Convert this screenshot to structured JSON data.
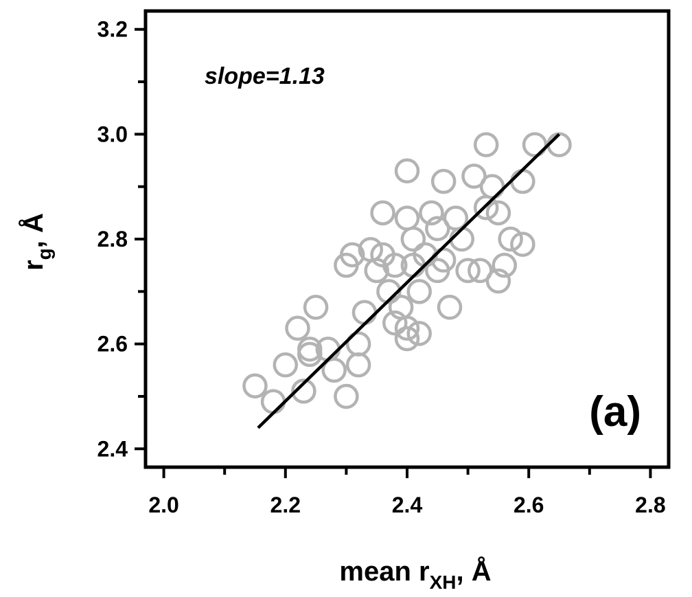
{
  "chart_data": {
    "type": "scatter",
    "title": "",
    "xlabel": {
      "main": "mean r",
      "sub": "XH",
      "unit": ", Å"
    },
    "ylabel": {
      "main": "r",
      "sub": "g",
      "unit": ", Å"
    },
    "xlim": [
      1.97,
      2.83
    ],
    "ylim": [
      2.365,
      3.235
    ],
    "x_ticks": [
      "2.0",
      "2.2",
      "2.4",
      "2.6",
      "2.8"
    ],
    "y_ticks": [
      "2.4",
      "2.6",
      "2.8",
      "3.0",
      "3.2"
    ],
    "annotations": {
      "slope": "slope=1.13",
      "panel": "(a)"
    },
    "marker_color": "#b3b3b3",
    "line_color": "#000000",
    "fit_line": {
      "slope": 1.13,
      "x": [
        2.155,
        2.65
      ],
      "y": [
        2.44,
        3.0
      ]
    },
    "points": [
      {
        "x": 2.15,
        "y": 2.52
      },
      {
        "x": 2.18,
        "y": 2.49
      },
      {
        "x": 2.2,
        "y": 2.56
      },
      {
        "x": 2.22,
        "y": 2.63
      },
      {
        "x": 2.24,
        "y": 2.59
      },
      {
        "x": 2.24,
        "y": 2.58
      },
      {
        "x": 2.23,
        "y": 2.51
      },
      {
        "x": 2.25,
        "y": 2.67
      },
      {
        "x": 2.27,
        "y": 2.59
      },
      {
        "x": 2.28,
        "y": 2.55
      },
      {
        "x": 2.3,
        "y": 2.5
      },
      {
        "x": 2.3,
        "y": 2.75
      },
      {
        "x": 2.31,
        "y": 2.77
      },
      {
        "x": 2.33,
        "y": 2.66
      },
      {
        "x": 2.32,
        "y": 2.6
      },
      {
        "x": 2.32,
        "y": 2.56
      },
      {
        "x": 2.34,
        "y": 2.78
      },
      {
        "x": 2.35,
        "y": 2.74
      },
      {
        "x": 2.36,
        "y": 2.77
      },
      {
        "x": 2.36,
        "y": 2.85
      },
      {
        "x": 2.37,
        "y": 2.7
      },
      {
        "x": 2.38,
        "y": 2.75
      },
      {
        "x": 2.38,
        "y": 2.64
      },
      {
        "x": 2.39,
        "y": 2.67
      },
      {
        "x": 2.4,
        "y": 2.61
      },
      {
        "x": 2.4,
        "y": 2.63
      },
      {
        "x": 2.4,
        "y": 2.84
      },
      {
        "x": 2.4,
        "y": 2.93
      },
      {
        "x": 2.41,
        "y": 2.8
      },
      {
        "x": 2.41,
        "y": 2.75
      },
      {
        "x": 2.42,
        "y": 2.62
      },
      {
        "x": 2.42,
        "y": 2.7
      },
      {
        "x": 2.43,
        "y": 2.77
      },
      {
        "x": 2.44,
        "y": 2.85
      },
      {
        "x": 2.45,
        "y": 2.82
      },
      {
        "x": 2.45,
        "y": 2.74
      },
      {
        "x": 2.46,
        "y": 2.76
      },
      {
        "x": 2.46,
        "y": 2.91
      },
      {
        "x": 2.47,
        "y": 2.67
      },
      {
        "x": 2.48,
        "y": 2.84
      },
      {
        "x": 2.49,
        "y": 2.8
      },
      {
        "x": 2.5,
        "y": 2.74
      },
      {
        "x": 2.51,
        "y": 2.92
      },
      {
        "x": 2.52,
        "y": 2.74
      },
      {
        "x": 2.53,
        "y": 2.98
      },
      {
        "x": 2.53,
        "y": 2.86
      },
      {
        "x": 2.54,
        "y": 2.9
      },
      {
        "x": 2.55,
        "y": 2.85
      },
      {
        "x": 2.55,
        "y": 2.72
      },
      {
        "x": 2.56,
        "y": 2.75
      },
      {
        "x": 2.57,
        "y": 2.8
      },
      {
        "x": 2.59,
        "y": 2.91
      },
      {
        "x": 2.59,
        "y": 2.79
      },
      {
        "x": 2.61,
        "y": 2.98
      },
      {
        "x": 2.65,
        "y": 2.98
      }
    ]
  }
}
